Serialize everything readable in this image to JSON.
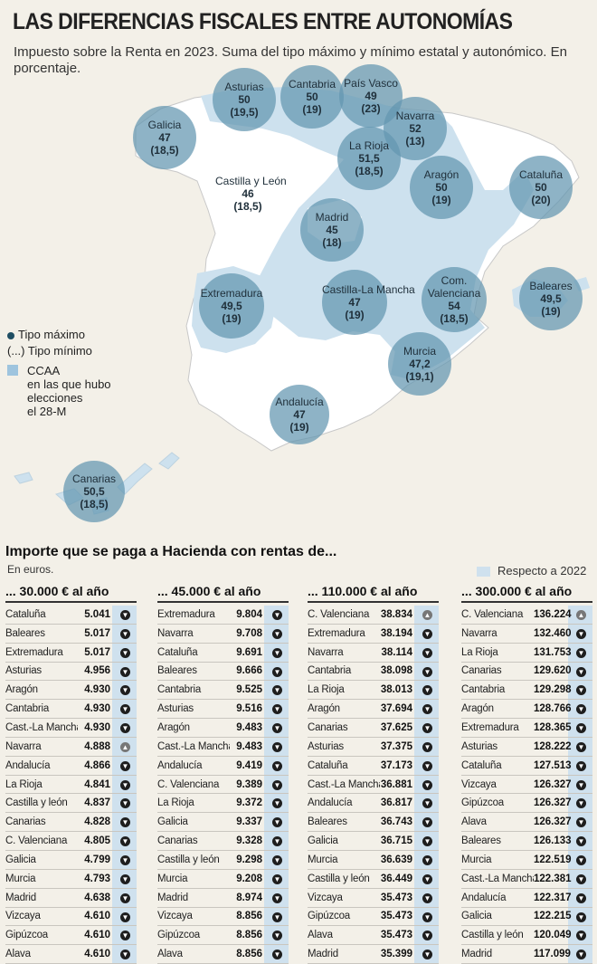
{
  "title": "LAS DIFERENCIAS FISCALES ENTRE AUTONOMÍAS",
  "subtitle": "Impuesto sobre la Renta en 2023. Suma del tipo máximo y mínimo estatal y autonómico. En porcentaje.",
  "legend": {
    "max": "Tipo máximo",
    "min": "(...) Tipo mínimo",
    "ccaa": [
      "CCAA",
      "en las que hubo",
      "elecciones",
      "el 28-M"
    ]
  },
  "colors": {
    "bubble": "#6296b0",
    "land": "#ffffff",
    "election_land": "#cde1ee",
    "strip": "#cfe1ee",
    "dark": "#1f4e63"
  },
  "regions": [
    {
      "name": "Asturias",
      "max": "50",
      "min": "(19,5)"
    },
    {
      "name": "Cantabria",
      "max": "50",
      "min": "(19)"
    },
    {
      "name": "País Vasco",
      "max": "49",
      "min": "(23)"
    },
    {
      "name": "Galicia",
      "max": "47",
      "min": "(18,5)"
    },
    {
      "name": "Navarra",
      "max": "52",
      "min": "(13)"
    },
    {
      "name": "La Rioja",
      "max": "51,5",
      "min": "(18,5)"
    },
    {
      "name": "Castilla y León",
      "max": "46",
      "min": "(18,5)"
    },
    {
      "name": "Aragón",
      "max": "50",
      "min": "(19)"
    },
    {
      "name": "Cataluña",
      "max": "50",
      "min": "(20)"
    },
    {
      "name": "Madrid",
      "max": "45",
      "min": "(18)"
    },
    {
      "name": "Extremadura",
      "max": "49,5",
      "min": "(19)"
    },
    {
      "name": "Castilla-La Mancha",
      "max": "47",
      "min": "(19)"
    },
    {
      "name": "Com.",
      "name2": "Valenciana",
      "max": "54",
      "min": "(18,5)"
    },
    {
      "name": "Baleares",
      "max": "49,5",
      "min": "(19)"
    },
    {
      "name": "Murcia",
      "max": "47,2",
      "min": "(19,1)"
    },
    {
      "name": "Andalucía",
      "max": "47",
      "min": "(19)"
    },
    {
      "name": "Canarias",
      "max": "50,5",
      "min": "(18,5)"
    }
  ],
  "section": {
    "title": "Importe que se paga a Hacienda con rentas de...",
    "sub": "En euros.",
    "compare": "Respecto a 2022"
  },
  "tables": [
    {
      "header": "... 30.000 € al año",
      "rows": [
        {
          "name": "Cataluña",
          "value": "5.041",
          "dir": "down"
        },
        {
          "name": "Baleares",
          "value": "5.017",
          "dir": "down"
        },
        {
          "name": "Extremadura",
          "value": "5.017",
          "dir": "down"
        },
        {
          "name": "Asturias",
          "value": "4.956",
          "dir": "down"
        },
        {
          "name": "Aragón",
          "value": "4.930",
          "dir": "down"
        },
        {
          "name": "Cantabria",
          "value": "4.930",
          "dir": "down"
        },
        {
          "name": "Cast.-La Mancha",
          "value": "4.930",
          "dir": "down"
        },
        {
          "name": "Navarra",
          "value": "4.888",
          "dir": "up"
        },
        {
          "name": "Andalucía",
          "value": "4.866",
          "dir": "down"
        },
        {
          "name": "La Rioja",
          "value": "4.841",
          "dir": "down"
        },
        {
          "name": "Castilla y león",
          "value": "4.837",
          "dir": "down"
        },
        {
          "name": "Canarias",
          "value": "4.828",
          "dir": "down"
        },
        {
          "name": "C. Valenciana",
          "value": "4.805",
          "dir": "down"
        },
        {
          "name": "Galicia",
          "value": "4.799",
          "dir": "down"
        },
        {
          "name": "Murcia",
          "value": "4.793",
          "dir": "down"
        },
        {
          "name": "Madrid",
          "value": "4.638",
          "dir": "down"
        },
        {
          "name": "Vizcaya",
          "value": "4.610",
          "dir": "down"
        },
        {
          "name": "Gipúzcoa",
          "value": "4.610",
          "dir": "down"
        },
        {
          "name": "Álava",
          "value": "4.610",
          "dir": "down"
        }
      ]
    },
    {
      "header": "... 45.000 € al año",
      "rows": [
        {
          "name": "Extremadura",
          "value": "9.804",
          "dir": "down"
        },
        {
          "name": "Navarra",
          "value": "9.708",
          "dir": "down"
        },
        {
          "name": "Cataluña",
          "value": "9.691",
          "dir": "down"
        },
        {
          "name": "Baleares",
          "value": "9.666",
          "dir": "down"
        },
        {
          "name": "Cantabria",
          "value": "9.525",
          "dir": "down"
        },
        {
          "name": "Asturias",
          "value": "9.516",
          "dir": "down"
        },
        {
          "name": "Aragón",
          "value": "9.483",
          "dir": "down"
        },
        {
          "name": "Cast.-La Mancha",
          "value": "9.483",
          "dir": "down"
        },
        {
          "name": "Andalucía",
          "value": "9.419",
          "dir": "down"
        },
        {
          "name": "C. Valenciana",
          "value": "9.389",
          "dir": "down"
        },
        {
          "name": "La Rioja",
          "value": "9.372",
          "dir": "down"
        },
        {
          "name": "Galicia",
          "value": "9.337",
          "dir": "down"
        },
        {
          "name": "Canarias",
          "value": "9.328",
          "dir": "down"
        },
        {
          "name": "Castilla y león",
          "value": "9.298",
          "dir": "down"
        },
        {
          "name": "Murcia",
          "value": "9.208",
          "dir": "down"
        },
        {
          "name": "Madrid",
          "value": "8.974",
          "dir": "down"
        },
        {
          "name": "Vizcaya",
          "value": "8.856",
          "dir": "down"
        },
        {
          "name": "Gipúzcoa",
          "value": "8.856",
          "dir": "down"
        },
        {
          "name": "Álava",
          "value": "8.856",
          "dir": "down"
        }
      ]
    },
    {
      "header": "... 110.000 € al año",
      "rows": [
        {
          "name": "C. Valenciana",
          "value": "38.834",
          "dir": "up"
        },
        {
          "name": "Extremadura",
          "value": "38.194",
          "dir": "down"
        },
        {
          "name": "Navarra",
          "value": "38.114",
          "dir": "down"
        },
        {
          "name": "Cantabria",
          "value": "38.098",
          "dir": "down"
        },
        {
          "name": "La Rioja",
          "value": "38.013",
          "dir": "down"
        },
        {
          "name": "Aragón",
          "value": "37.694",
          "dir": "down"
        },
        {
          "name": "Canarias",
          "value": "37.625",
          "dir": "down"
        },
        {
          "name": "Asturias",
          "value": "37.375",
          "dir": "down"
        },
        {
          "name": "Cataluña",
          "value": "37.173",
          "dir": "down"
        },
        {
          "name": "Cast.-La Mancha",
          "value": "36.881",
          "dir": "down"
        },
        {
          "name": "Andalucía",
          "value": "36.817",
          "dir": "down"
        },
        {
          "name": "Baleares",
          "value": "36.743",
          "dir": "down"
        },
        {
          "name": "Galicia",
          "value": "36.715",
          "dir": "down"
        },
        {
          "name": "Murcia",
          "value": "36.639",
          "dir": "down"
        },
        {
          "name": "Castilla y león",
          "value": "36.449",
          "dir": "down"
        },
        {
          "name": "Vizcaya",
          "value": "35.473",
          "dir": "down"
        },
        {
          "name": "Gipúzcoa",
          "value": "35.473",
          "dir": "down"
        },
        {
          "name": "Álava",
          "value": "35.473",
          "dir": "down"
        },
        {
          "name": "Madrid",
          "value": "35.399",
          "dir": "down"
        }
      ]
    },
    {
      "header": "... 300.000 € al año",
      "rows": [
        {
          "name": "C. Valenciana",
          "value": "136.224",
          "dir": "up"
        },
        {
          "name": "Navarra",
          "value": "132.460",
          "dir": "down"
        },
        {
          "name": "La Rioja",
          "value": "131.753",
          "dir": "down"
        },
        {
          "name": "Canarias",
          "value": "129.620",
          "dir": "down"
        },
        {
          "name": "Cantabria",
          "value": "129.298",
          "dir": "down"
        },
        {
          "name": "Aragón",
          "value": "128.766",
          "dir": "down"
        },
        {
          "name": "Extremadura",
          "value": "128.365",
          "dir": "down"
        },
        {
          "name": "Asturias",
          "value": "128.222",
          "dir": "down"
        },
        {
          "name": "Cataluña",
          "value": "127.513",
          "dir": "down"
        },
        {
          "name": "Vizcaya",
          "value": "126.327",
          "dir": "down"
        },
        {
          "name": "Gipúzcoa",
          "value": "126.327",
          "dir": "down"
        },
        {
          "name": "Álava",
          "value": "126.327",
          "dir": "down"
        },
        {
          "name": "Baleares",
          "value": "126.133",
          "dir": "down"
        },
        {
          "name": "Murcia",
          "value": "122.519",
          "dir": "down"
        },
        {
          "name": "Cast.-La Mancha",
          "value": "122.381",
          "dir": "down"
        },
        {
          "name": "Andalucía",
          "value": "122.317",
          "dir": "down"
        },
        {
          "name": "Galicia",
          "value": "122.215",
          "dir": "down"
        },
        {
          "name": "Castilla y león",
          "value": "120.049",
          "dir": "down"
        },
        {
          "name": "Madrid",
          "value": "117.099",
          "dir": "down"
        }
      ]
    }
  ]
}
